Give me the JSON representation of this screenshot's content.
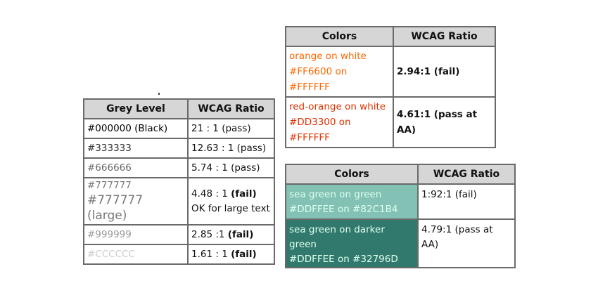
{
  "grey_table": {
    "headers": [
      "Grey Level",
      "WCAG Ratio"
    ],
    "rows": [
      {
        "label": "#000000 (Black)",
        "ratio": "21 : 1 (pass)"
      },
      {
        "label": "#333333",
        "ratio": "12.63 : 1 (pass)"
      },
      {
        "label": "#666666",
        "ratio": "5.74 : 1 (pass)"
      },
      {
        "label": "#777777",
        "label_large": "#777777 (large)",
        "ratio_prefix": "4.48 : 1 ",
        "ratio_bold": "(fail)",
        "ratio_line2": "OK for large text"
      },
      {
        "label": "#999999",
        "ratio_prefix": "2.85 :1 ",
        "ratio_bold": "(fail)"
      },
      {
        "label": "#CCCCCC",
        "ratio_prefix": "1.61 : 1 ",
        "ratio_bold": "(fail)"
      }
    ]
  },
  "orange_table": {
    "headers": [
      "Colors",
      "WCAG Ratio"
    ],
    "rows": [
      {
        "line1": "orange on white",
        "line2": "#FF6600 on #FFFFFF",
        "ratio": "2.94:1 (fail)",
        "color": "#FF6600"
      },
      {
        "line1": "red-orange on white",
        "line2": "#DD3300 on #FFFFFF",
        "ratio": "4.61:1 (pass at AA)",
        "color": "#DD3300"
      }
    ]
  },
  "green_table": {
    "headers": [
      "Colors",
      "WCAG Ratio"
    ],
    "rows": [
      {
        "line1": "sea green on green",
        "line2": "#DDFFEE on #82C1B4",
        "ratio": "1:92:1 (fail)",
        "background": "#82C1B4",
        "color": "#DDFFEE"
      },
      {
        "line1": "sea green on darker green",
        "line2": "#DDFFEE on #32796D",
        "ratio": "4.79:1 (pass at AA)",
        "background": "#32796D",
        "color": "#DDFFEE"
      }
    ]
  }
}
